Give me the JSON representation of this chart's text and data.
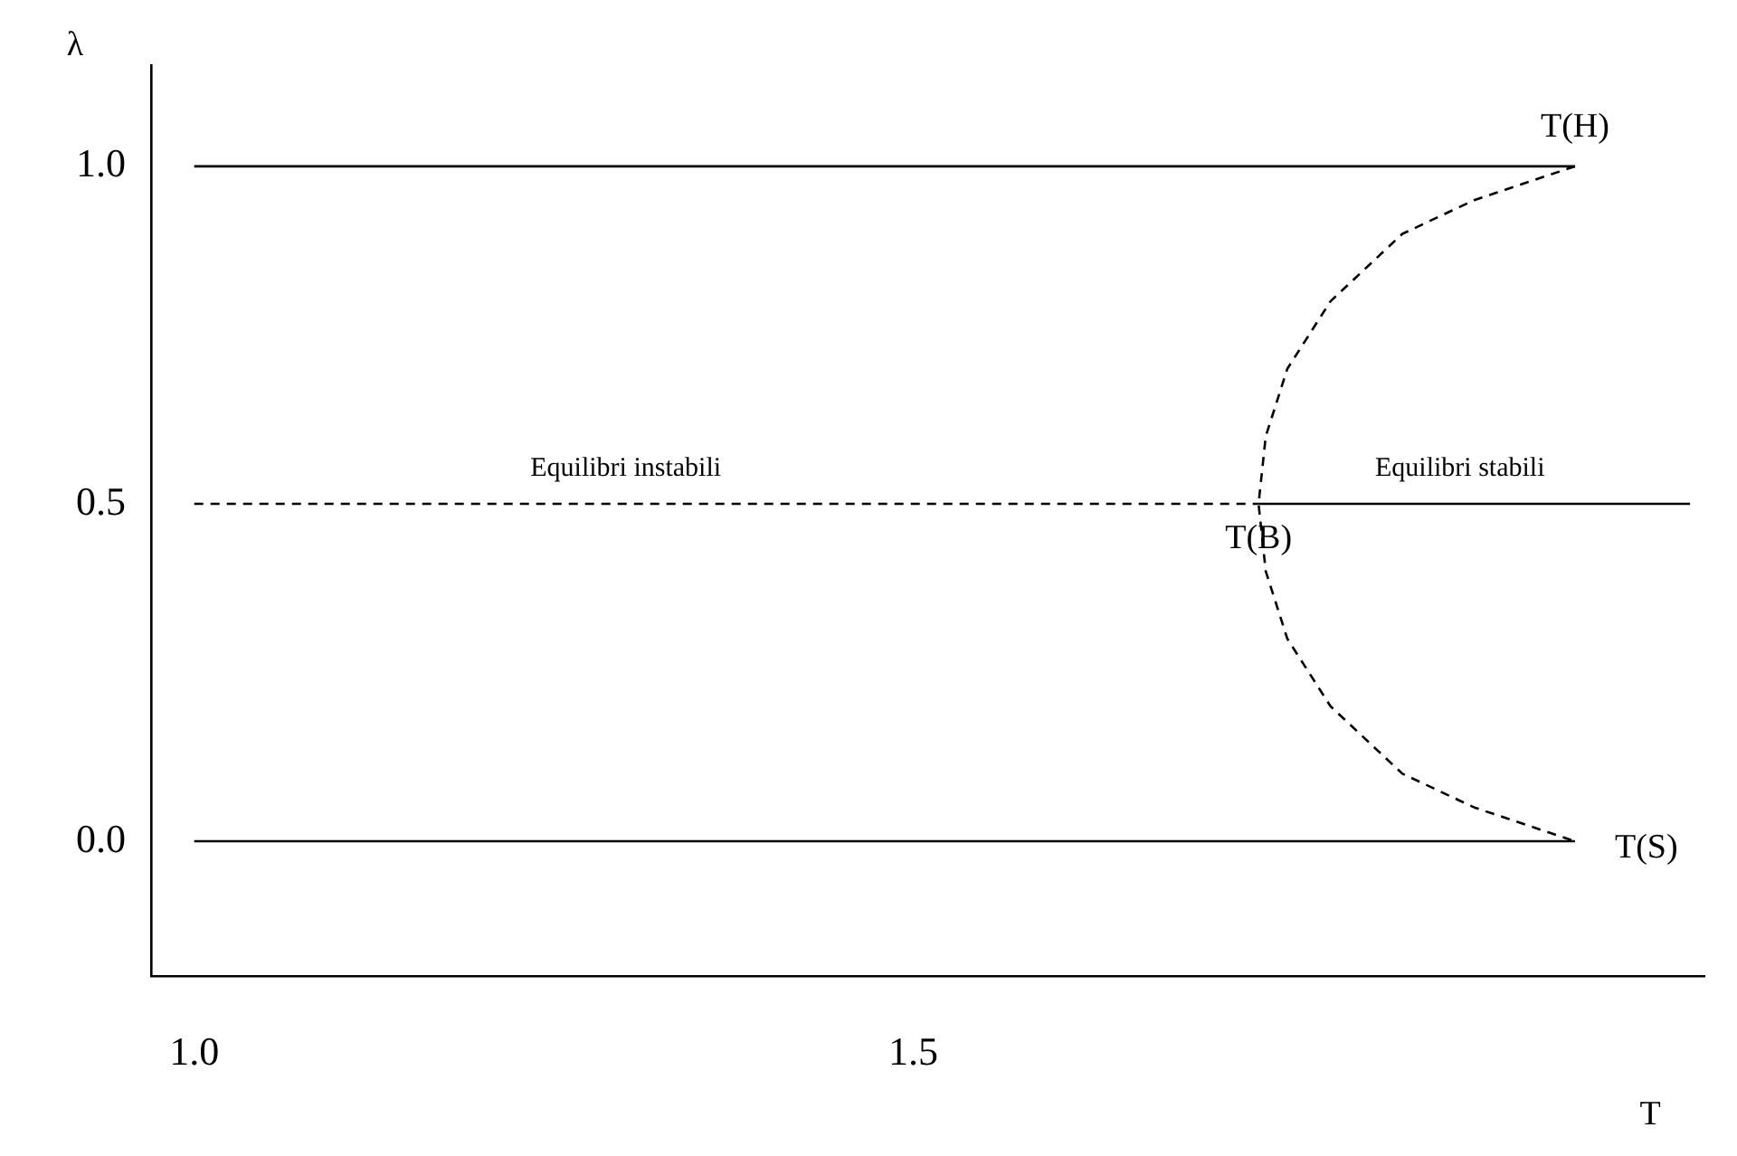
{
  "chart_data": {
    "type": "line",
    "xlabel": "T",
    "ylabel": "λ",
    "xlim": [
      0.97,
      2.05
    ],
    "ylim": [
      -0.2,
      1.15
    ],
    "xticks": [
      {
        "value": 1,
        "label": "1.0"
      },
      {
        "value": 1.5,
        "label": "1.5"
      }
    ],
    "yticks": [
      {
        "value": 0,
        "label": "0.0"
      },
      {
        "value": 0.5,
        "label": "0.5"
      },
      {
        "value": 1,
        "label": "1.0"
      }
    ],
    "grid": false,
    "legend": false,
    "marker": "none",
    "series": [
      {
        "color": "#000000",
        "line_style": "solid",
        "x": [
          1.0,
          1.96
        ],
        "values": [
          1,
          1
        ]
      },
      {
        "color": "#000000",
        "line_style": "dashed",
        "x": [
          1.0,
          1.74
        ],
        "values": [
          0.5,
          0.5
        ]
      },
      {
        "color": "#000000",
        "line_style": "solid",
        "x": [
          1.74,
          2.04
        ],
        "values": [
          0.5,
          0.5
        ]
      },
      {
        "color": "#000000",
        "line_style": "solid",
        "x": [
          1.0,
          1.96
        ],
        "values": [
          0,
          0
        ]
      },
      {
        "color": "#000000",
        "line_style": "dashed",
        "x": [
          1.96,
          1.89,
          1.84,
          1.79,
          1.76,
          1.745,
          1.74,
          1.745,
          1.76,
          1.79,
          1.84,
          1.89,
          1.96
        ],
        "values": [
          1,
          0.95,
          0.9,
          0.8,
          0.7,
          0.6,
          0.5,
          0.4,
          0.3,
          0.2,
          0.1,
          0.05,
          0
        ]
      }
    ],
    "annotations": [
      {
        "text": "Equilibri instabili",
        "x": 1.3,
        "y": 0.5
      },
      {
        "text": "Equilibri stabili",
        "x": 1.88,
        "y": 0.5
      },
      {
        "text": "T(H)",
        "x": 1.96,
        "y": 1.0
      },
      {
        "text": "T(B)",
        "x": 1.74,
        "y": 0.5
      },
      {
        "text": "T(S)",
        "x": 1.96,
        "y": 0
      }
    ]
  }
}
